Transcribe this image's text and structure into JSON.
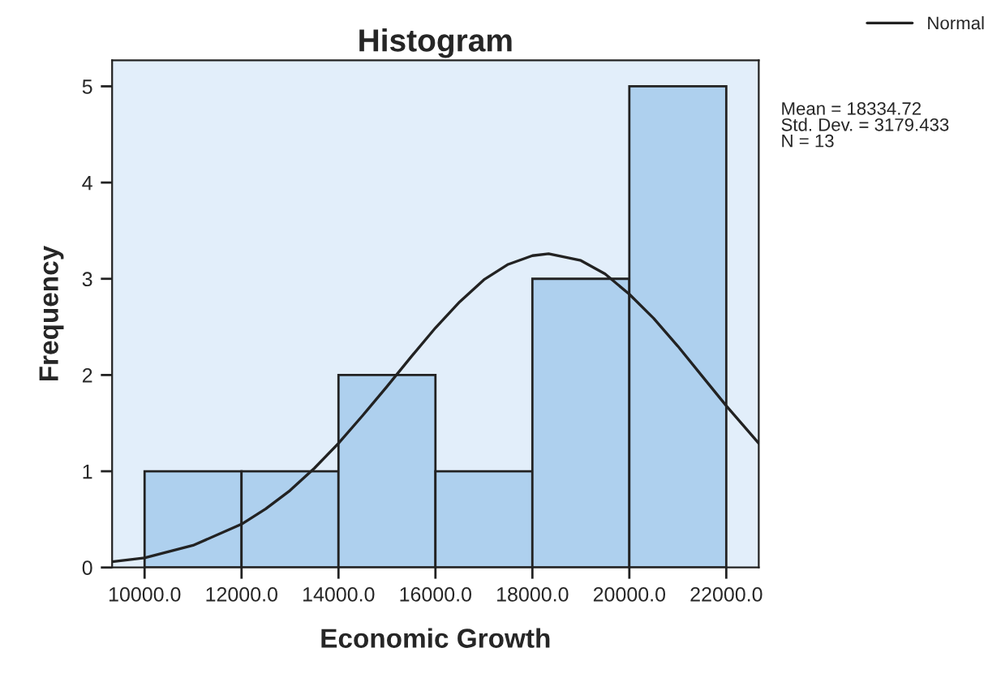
{
  "chart_data": {
    "type": "histogram",
    "title": "Histogram",
    "xlabel": "Economic Growth",
    "ylabel": "Frequency",
    "series": [
      {
        "bins": [
          10000,
          12000,
          14000,
          16000,
          18000,
          20000,
          22000
        ],
        "values": [
          1,
          1,
          2,
          1,
          3,
          5
        ],
        "color": "#aed0ee"
      },
      {
        "type": "line",
        "name": "Normal",
        "color": "#222222",
        "x": [
          9330,
          10000,
          11000,
          12000,
          12500,
          13000,
          13500,
          14000,
          14500,
          15000,
          15500,
          16000,
          16500,
          17000,
          17500,
          18000,
          18335,
          19000,
          19500,
          20000,
          20500,
          21000,
          21500,
          22000,
          22670
        ],
        "values": [
          0.06,
          0.1,
          0.23,
          0.45,
          0.61,
          0.8,
          1.03,
          1.29,
          1.58,
          1.88,
          2.19,
          2.49,
          2.76,
          2.99,
          3.15,
          3.24,
          3.26,
          3.19,
          3.05,
          2.84,
          2.59,
          2.3,
          1.99,
          1.68,
          1.29
        ]
      }
    ],
    "xlim": [
      9330,
      22670
    ],
    "ylim": [
      0,
      5.27
    ],
    "xticks": [
      {
        "value": 10000,
        "label": "10000.0"
      },
      {
        "value": 12000,
        "label": "12000.0"
      },
      {
        "value": 14000,
        "label": "14000.0"
      },
      {
        "value": 16000,
        "label": "16000.0"
      },
      {
        "value": 18000,
        "label": "18000.0"
      },
      {
        "value": 20000,
        "label": "20000.0"
      },
      {
        "value": 22000,
        "label": "22000.0"
      }
    ],
    "yticks": [
      0,
      1,
      2,
      3,
      4,
      5
    ],
    "annotations": [
      "Mean = 18334.72\nStd. Dev. = 3179.433\nN = 13"
    ],
    "legend": "top right",
    "grid": false
  }
}
